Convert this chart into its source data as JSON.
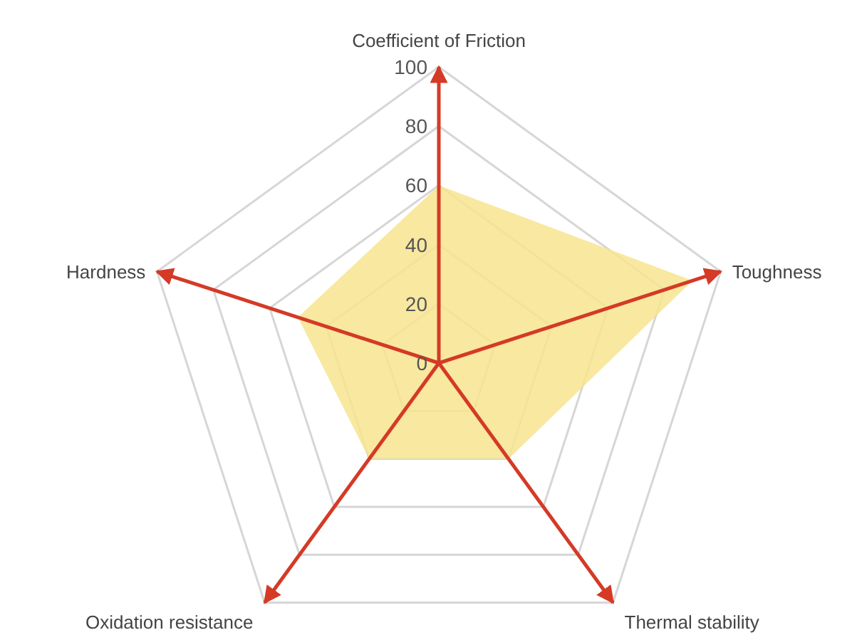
{
  "chart_data": {
    "type": "radar",
    "categories": [
      "Coefficient of Friction",
      "Toughness",
      "Thermal stability",
      "Oxidation resistance",
      "Hardness"
    ],
    "series": [
      {
        "color": "#f7e48f",
        "values": [
          60,
          90,
          40,
          40,
          50
        ]
      }
    ],
    "ylim": [
      0,
      100
    ],
    "yticks": [
      0,
      20,
      40,
      60,
      80,
      100
    ],
    "grid": true
  }
}
